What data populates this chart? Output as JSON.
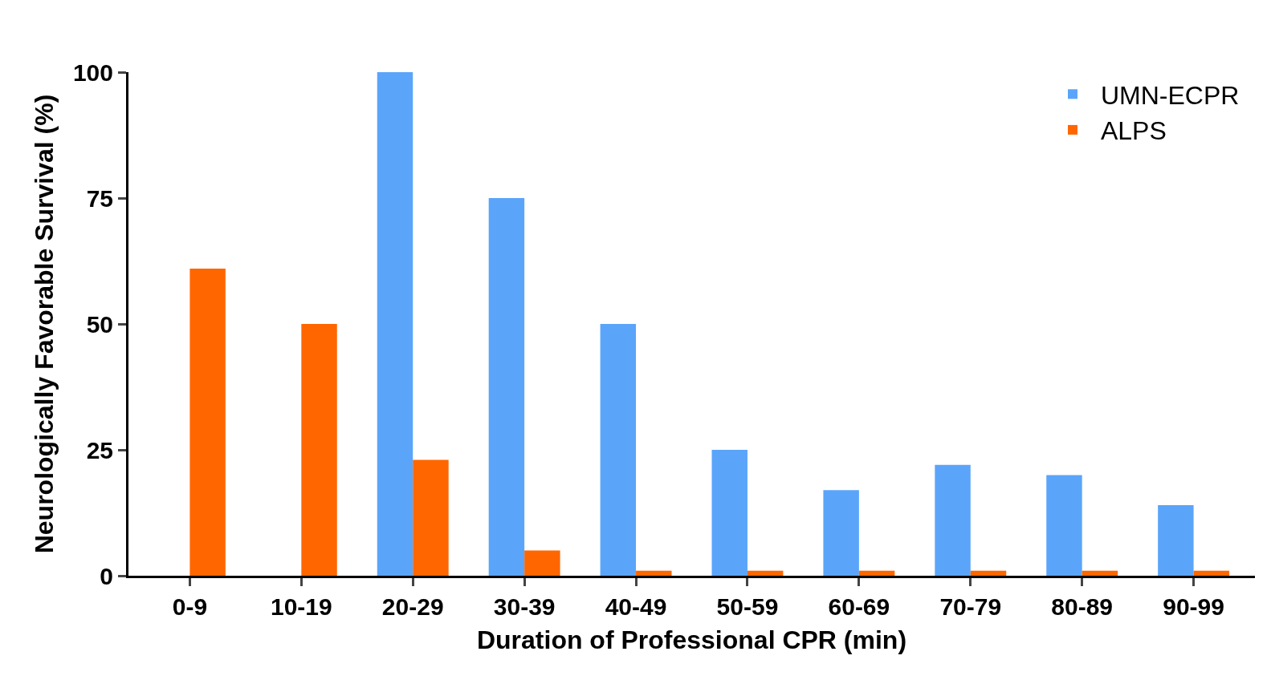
{
  "chart_data": {
    "type": "bar",
    "xlabel": "Duration of Professional CPR (min)",
    "ylabel": "Neurologically Favorable Survival (%)",
    "categories": [
      "0-9",
      "10-19",
      "20-29",
      "30-39",
      "40-49",
      "50-59",
      "60-69",
      "70-79",
      "80-89",
      "90-99"
    ],
    "series": [
      {
        "name": "UMN-ECPR",
        "color": "#5aa5fa",
        "values": [
          0,
          0,
          100,
          75,
          50,
          25,
          17,
          22,
          20,
          14
        ]
      },
      {
        "name": "ALPS",
        "color": "#ff6600",
        "values": [
          61,
          50,
          23,
          5,
          1,
          1,
          1,
          1,
          1,
          1
        ]
      }
    ],
    "ylim": [
      0,
      100
    ],
    "yticks": [
      0,
      25,
      50,
      75,
      100
    ],
    "legend": "top right"
  }
}
